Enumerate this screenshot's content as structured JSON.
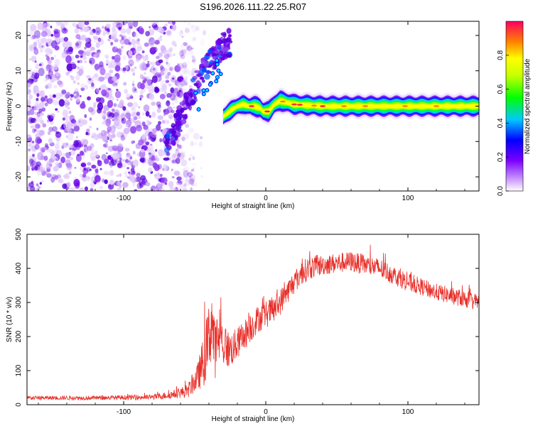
{
  "title": "S196.2026.111.22.25.R07",
  "chart_data": [
    {
      "type": "heatmap",
      "description_only": false,
      "xlabel": "Height of straight line (km)",
      "ylabel": "Frequency (Hz)",
      "xlim": [
        -168,
        150
      ],
      "ylim": [
        -24,
        24
      ],
      "xticks": [
        -100,
        0,
        100
      ],
      "xtick_labels": [
        "-100",
        "0",
        "100"
      ],
      "yticks": [
        -20,
        -10,
        0,
        10,
        20
      ],
      "ytick_labels": [
        "-20",
        "-10",
        "0",
        "10",
        "20"
      ],
      "ridge_x": [
        -30,
        -24,
        -20,
        -16,
        -12,
        -8,
        -4,
        -2,
        2,
        6,
        10,
        20,
        40,
        60,
        80,
        100,
        120,
        150
      ],
      "ridge_y": [
        -3,
        -1,
        0,
        0.5,
        0,
        0,
        -0.5,
        -1.5,
        -1.5,
        0.5,
        1.5,
        0.5,
        0,
        0,
        0,
        0,
        0,
        0
      ],
      "branch_x": [
        -70,
        -60,
        -50,
        -42,
        -36,
        -30,
        -25
      ],
      "branch_y": [
        -12,
        -3,
        5,
        11,
        14,
        17,
        18
      ],
      "colorbar": {
        "label": "Normalized spectral amplitude",
        "range": [
          0.0,
          1.0
        ],
        "ticks": [
          0.0,
          0.2,
          0.4,
          0.6,
          0.8
        ],
        "tick_labels": [
          "0.0",
          "0.2",
          "0.4",
          "0.6",
          "0.8"
        ]
      }
    },
    {
      "type": "line",
      "xlabel": "Height of straight line (km)",
      "ylabel": "SNR (10 * v/v)",
      "xlim": [
        -168,
        150
      ],
      "ylim": [
        0,
        500
      ],
      "xticks": [
        -100,
        0,
        100
      ],
      "xtick_labels": [
        "-100",
        "0",
        "100"
      ],
      "yticks": [
        0,
        100,
        200,
        300,
        400,
        500
      ],
      "ytick_labels": [
        "0",
        "100",
        "200",
        "300",
        "400",
        "500"
      ],
      "color": "#e8302a",
      "series": [
        {
          "name": "SNR",
          "x": [
            -168,
            -120,
            -80,
            -65,
            -55,
            -48,
            -42,
            -38,
            -36,
            -33,
            -30,
            -26,
            -22,
            -18,
            -14,
            -10,
            -6,
            -2,
            2,
            6,
            10,
            15,
            20,
            25,
            30,
            40,
            50,
            60,
            70,
            80,
            90,
            100,
            110,
            120,
            130,
            140,
            150
          ],
          "y": [
            20,
            20,
            22,
            30,
            40,
            80,
            150,
            250,
            160,
            200,
            180,
            160,
            170,
            190,
            210,
            230,
            250,
            260,
            270,
            280,
            300,
            330,
            360,
            385,
            400,
            410,
            415,
            420,
            410,
            400,
            380,
            360,
            345,
            330,
            320,
            310,
            300
          ],
          "noise_amplitude": [
            6,
            6,
            8,
            12,
            20,
            40,
            90,
            120,
            90,
            80,
            70,
            55,
            50,
            45,
            45,
            45,
            40,
            40,
            40,
            40,
            40,
            35,
            35,
            35,
            35,
            30,
            30,
            30,
            30,
            30,
            28,
            28,
            25,
            25,
            25,
            25,
            25
          ]
        }
      ]
    }
  ]
}
